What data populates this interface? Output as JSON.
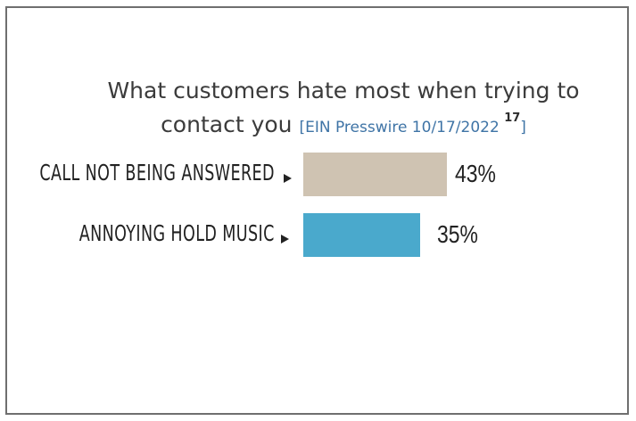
{
  "chart_data": {
    "type": "bar",
    "orientation": "horizontal",
    "title": "What customers hate most when trying to contact you",
    "citation": "[EIN Presswire 10/17/2022 ",
    "citation_sup": "17",
    "citation_end": "]",
    "categories": [
      "CALL NOT BEING ANSWERED",
      "ANNOYING HOLD MUSIC"
    ],
    "values": [
      43,
      35
    ],
    "value_labels": [
      "43%",
      "35%"
    ],
    "bar_colors": [
      "#cfc3b2",
      "#4aa9cc"
    ],
    "xlim": [
      0,
      100
    ]
  }
}
